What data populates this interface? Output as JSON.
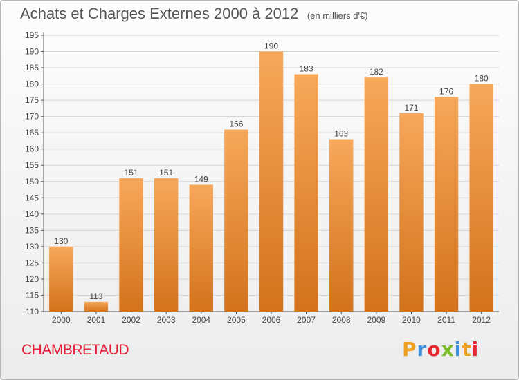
{
  "header": {
    "title": "Achats et Charges Externes 2000 à 2012",
    "unit": "(en milliers d'€)"
  },
  "footer": {
    "commune": "CHAMBRETAUD",
    "logo_text": "Proxiti",
    "logo_colors": [
      "#f0a020",
      "#3a8fd8",
      "#e8262d",
      "#7ab928",
      "#3a8fd8",
      "#f0a020",
      "#e8262d"
    ]
  },
  "colors": {
    "bar_top": "#f7a85a",
    "bar_bottom": "#d3721c",
    "grid": "#d5d5d5",
    "axis": "#555555"
  },
  "chart_data": {
    "type": "bar",
    "title": "Achats et Charges Externes 2000 à 2012",
    "xlabel": "",
    "ylabel": "",
    "categories": [
      "2000",
      "2001",
      "2002",
      "2003",
      "2004",
      "2005",
      "2006",
      "2007",
      "2008",
      "2009",
      "2010",
      "2011",
      "2012"
    ],
    "values": [
      130,
      113,
      151,
      151,
      149,
      166,
      190,
      183,
      163,
      182,
      171,
      176,
      180
    ],
    "ylim": [
      110,
      195
    ],
    "yticks": [
      110,
      115,
      120,
      125,
      130,
      135,
      140,
      145,
      150,
      155,
      160,
      165,
      170,
      175,
      180,
      185,
      190,
      195
    ],
    "grid": true,
    "data_labels": true
  }
}
